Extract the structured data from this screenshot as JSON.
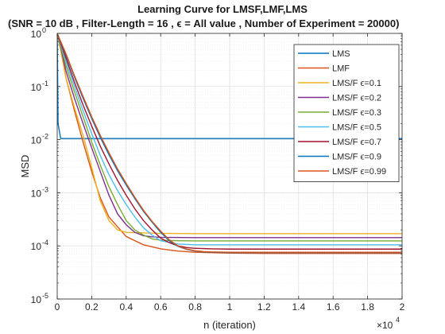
{
  "chart_data": {
    "type": "line",
    "title": "Learning Curve for LMSF,LMF,LMS",
    "subtitle": "(SNR = 10 dB , Filter-Length = 16 , ϵ = All value , Number of Experiment = 20000)",
    "xlabel": "n (iteration)",
    "ylabel": "MSD",
    "x_exponent_label": "×10",
    "x_exponent_power": "4",
    "xlim": [
      0,
      2
    ],
    "ylim": [
      1e-05,
      1
    ],
    "yscale": "log",
    "grid": true,
    "legend_position": "top-right",
    "x_ticks": [
      0,
      0.2,
      0.4,
      0.6,
      0.8,
      1,
      1.2,
      1.4,
      1.6,
      1.8,
      2
    ],
    "x_tick_labels": [
      "0",
      "0.2",
      "0.4",
      "0.6",
      "0.8",
      "1",
      "1.2",
      "1.4",
      "1.6",
      "1.8",
      "2"
    ],
    "y_ticks": [
      1e-05,
      0.0001,
      0.001,
      0.01,
      0.1,
      1
    ],
    "y_tick_bases": [
      "10",
      "10",
      "10",
      "10",
      "10",
      "10"
    ],
    "y_tick_exps": [
      "-5",
      "-4",
      "-3",
      "-2",
      "-1",
      "0"
    ],
    "series": [
      {
        "name": "LMS",
        "color": "#0072BD",
        "x": [
          0,
          0.005,
          0.02,
          2.0
        ],
        "y": [
          1.0,
          0.02,
          0.0105,
          0.0105
        ]
      },
      {
        "name": "LMF",
        "color": "#D95319",
        "x": [
          0,
          0.02,
          0.05,
          0.1,
          0.15,
          0.2,
          0.25,
          0.3,
          0.4,
          0.5,
          0.6,
          0.7,
          0.8,
          1.0,
          1.2,
          1.4,
          1.6,
          1.8,
          2.0
        ],
        "y": [
          1.0,
          0.5,
          0.15,
          0.035,
          0.009,
          0.0025,
          0.0008,
          0.00035,
          0.00015,
          0.000105,
          8.8e-05,
          8e-05,
          7.6e-05,
          7.3e-05,
          7.2e-05,
          7.2e-05,
          7.2e-05,
          7.2e-05,
          7.2e-05
        ]
      },
      {
        "name": "LMS/F ϵ=0.1",
        "color": "#EDB120",
        "x": [
          0,
          0.02,
          0.05,
          0.1,
          0.15,
          0.2,
          0.25,
          0.3,
          0.35,
          0.4,
          0.6,
          0.8,
          1.0,
          1.5,
          2.0
        ],
        "y": [
          1.0,
          0.5,
          0.15,
          0.04,
          0.012,
          0.003,
          0.0007,
          0.0003,
          0.0002,
          0.00018,
          0.000172,
          0.00017,
          0.00017,
          0.00017,
          0.00017
        ]
      },
      {
        "name": "LMS/F ϵ=0.2",
        "color": "#7E2F8E",
        "x": [
          0,
          0.02,
          0.05,
          0.1,
          0.15,
          0.2,
          0.25,
          0.3,
          0.35,
          0.4,
          0.45,
          0.5,
          0.55,
          0.6,
          0.8,
          1.0,
          1.5,
          2.0
        ],
        "y": [
          1.0,
          0.55,
          0.2,
          0.06,
          0.02,
          0.007,
          0.0025,
          0.0009,
          0.0004,
          0.00025,
          0.00018,
          0.000155,
          0.000148,
          0.000145,
          0.000143,
          0.000143,
          0.000143,
          0.000143
        ]
      },
      {
        "name": "LMS/F ϵ=0.3",
        "color": "#77AC30",
        "x": [
          0,
          0.05,
          0.1,
          0.15,
          0.2,
          0.25,
          0.3,
          0.35,
          0.4,
          0.45,
          0.5,
          0.55,
          0.6,
          0.7,
          0.8,
          1.0,
          1.5,
          2.0
        ],
        "y": [
          1.0,
          0.25,
          0.08,
          0.027,
          0.009,
          0.0033,
          0.0013,
          0.0006,
          0.0003,
          0.0002,
          0.00016,
          0.000135,
          0.000128,
          0.000125,
          0.000124,
          0.000124,
          0.000124,
          0.000124
        ]
      },
      {
        "name": "LMS/F ϵ=0.5",
        "color": "#4DBEEE",
        "x": [
          0,
          0.05,
          0.1,
          0.15,
          0.2,
          0.25,
          0.3,
          0.35,
          0.4,
          0.45,
          0.5,
          0.55,
          0.6,
          0.7,
          0.8,
          1.0,
          1.5,
          2.0
        ],
        "y": [
          1.0,
          0.3,
          0.1,
          0.035,
          0.013,
          0.005,
          0.0022,
          0.0011,
          0.0006,
          0.00035,
          0.00022,
          0.00016,
          0.000125,
          0.000108,
          0.000105,
          0.000105,
          0.000105,
          0.000105
        ]
      },
      {
        "name": "LMS/F ϵ=0.7",
        "color": "#A2142F",
        "x": [
          0,
          0.05,
          0.1,
          0.15,
          0.2,
          0.25,
          0.3,
          0.35,
          0.4,
          0.45,
          0.5,
          0.55,
          0.6,
          0.65,
          0.7,
          0.75,
          0.8,
          0.9,
          1.0,
          1.5,
          2.0
        ],
        "y": [
          1.0,
          0.35,
          0.12,
          0.045,
          0.018,
          0.0075,
          0.0035,
          0.0017,
          0.0009,
          0.0005,
          0.0003,
          0.0002,
          0.00014,
          0.000115,
          0.0001,
          9.3e-05,
          9e-05,
          8.8e-05,
          8.7e-05,
          8.7e-05,
          8.7e-05
        ]
      },
      {
        "name": "LMS/F ϵ=0.9",
        "color": "#0072BD",
        "x": [
          0,
          0.05,
          0.1,
          0.15,
          0.2,
          0.25,
          0.3,
          0.35,
          0.4,
          0.45,
          0.5,
          0.55,
          0.6,
          0.65,
          0.7,
          0.75,
          0.8,
          0.85,
          0.9,
          1.0,
          1.2,
          1.5,
          2.0
        ],
        "y": [
          1.0,
          0.4,
          0.15,
          0.06,
          0.025,
          0.011,
          0.0052,
          0.0026,
          0.0014,
          0.00078,
          0.00045,
          0.00028,
          0.00018,
          0.000125,
          9.8e-05,
          8.6e-05,
          8e-05,
          7.7e-05,
          7.6e-05,
          7.5e-05,
          7.5e-05,
          7.5e-05,
          7.5e-05
        ]
      },
      {
        "name": "LMS/F ϵ=0.99",
        "color": "#D95319",
        "x": [
          0,
          0.05,
          0.1,
          0.15,
          0.2,
          0.25,
          0.3,
          0.35,
          0.4,
          0.45,
          0.5,
          0.55,
          0.6,
          0.65,
          0.7,
          0.75,
          0.8,
          0.85,
          0.9,
          1.0,
          1.2,
          1.5,
          2.0
        ],
        "y": [
          1.0,
          0.42,
          0.16,
          0.065,
          0.027,
          0.012,
          0.0057,
          0.0028,
          0.0015,
          0.00082,
          0.00047,
          0.00029,
          0.00019,
          0.00013,
          0.0001,
          8.7e-05,
          8.1e-05,
          7.8e-05,
          7.7e-05,
          7.6e-05,
          7.6e-05,
          7.6e-05,
          7.6e-05
        ]
      }
    ]
  }
}
